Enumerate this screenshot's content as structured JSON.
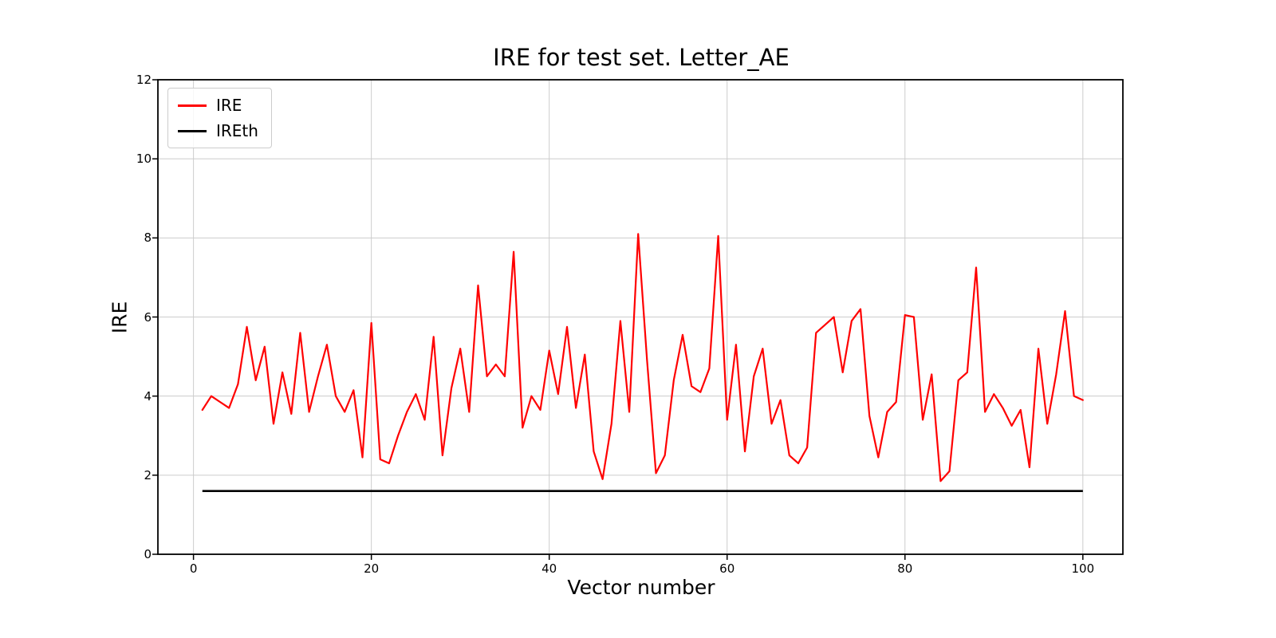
{
  "chart_data": {
    "type": "line",
    "title": "IRE for test set. Letter_AE",
    "xlabel": "Vector number",
    "ylabel": "IRE",
    "xlim": [
      -4,
      104.5
    ],
    "ylim": [
      0,
      12
    ],
    "xticks": [
      0,
      20,
      40,
      60,
      80,
      100
    ],
    "yticks": [
      0,
      2,
      4,
      6,
      8,
      10,
      12
    ],
    "grid": true,
    "legend_position": "upper left",
    "x_start": 1,
    "series": [
      {
        "name": "IRE",
        "color": "#ff0000",
        "values": [
          3.65,
          4.0,
          3.85,
          3.7,
          4.3,
          5.75,
          4.4,
          5.25,
          3.3,
          4.6,
          3.55,
          5.6,
          3.6,
          4.5,
          5.3,
          4.0,
          3.6,
          4.15,
          2.45,
          5.85,
          2.4,
          2.3,
          3.0,
          3.6,
          4.05,
          3.4,
          5.5,
          2.5,
          4.2,
          5.2,
          3.6,
          6.8,
          4.5,
          4.8,
          4.5,
          7.65,
          3.2,
          4.0,
          3.65,
          5.15,
          4.05,
          5.75,
          3.7,
          5.05,
          2.6,
          1.9,
          3.3,
          5.9,
          3.6,
          8.1,
          4.9,
          2.05,
          2.5,
          4.4,
          5.55,
          4.25,
          4.1,
          4.7,
          8.05,
          3.4,
          5.3,
          2.6,
          4.5,
          5.2,
          3.3,
          3.9,
          2.5,
          2.3,
          2.7,
          5.6,
          5.8,
          6.0,
          4.6,
          5.9,
          6.2,
          3.5,
          2.45,
          3.6,
          3.85,
          6.05,
          6.0,
          3.4,
          4.55,
          1.85,
          2.1,
          4.4,
          4.6,
          7.25,
          3.6,
          4.05,
          3.7,
          3.25,
          3.65,
          2.2,
          5.2,
          3.3,
          4.55,
          6.15,
          4.0,
          3.9
        ]
      },
      {
        "name": "IREth",
        "color": "#000000",
        "constant": 1.6,
        "x_range": [
          1,
          100
        ]
      }
    ]
  }
}
